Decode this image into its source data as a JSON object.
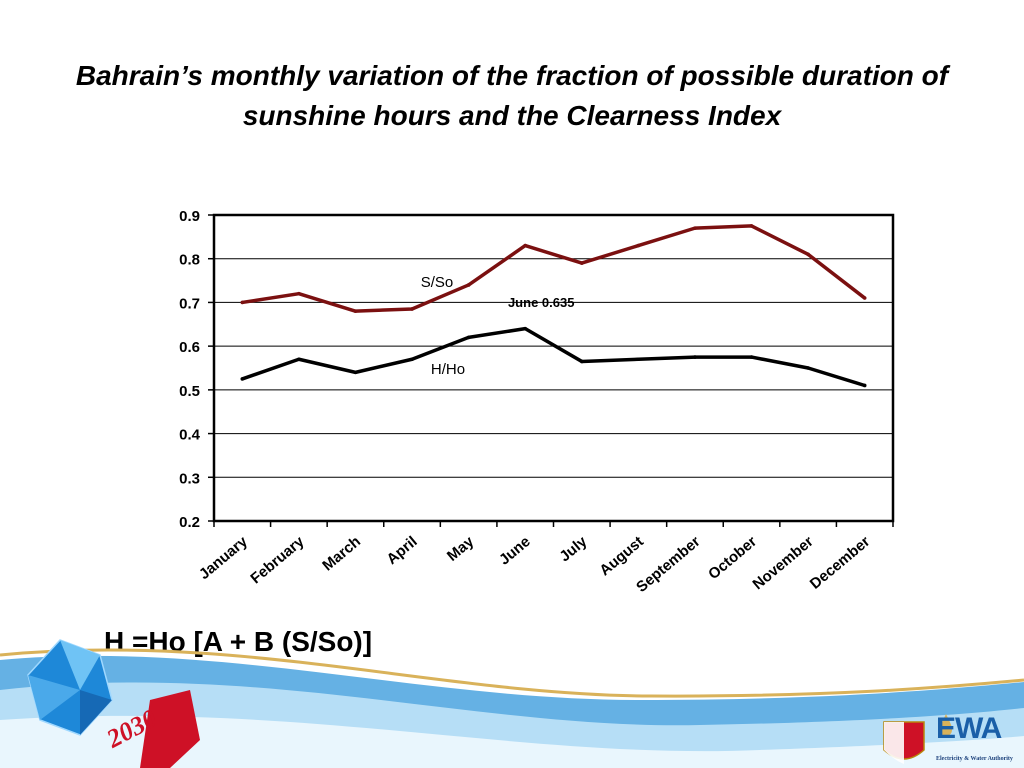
{
  "slide": {
    "title": "Bahrain’s monthly variation of the fraction of possible duration of sunshine hours and the Clearness Index",
    "formula": "H =Ho [A + B (S/So)]",
    "footer": {
      "vision_text": "2030",
      "logo_text": "EWA",
      "logo_subtitle": "Electricity & Water Authority",
      "colors": {
        "swoosh_blue": "#4aa3df",
        "swoosh_gold": "#d9b25a",
        "flag_red": "#ce1126"
      }
    }
  },
  "chart_data": {
    "type": "line",
    "categories": [
      "January",
      "February",
      "March",
      "April",
      "May",
      "June",
      "July",
      "August",
      "September",
      "October",
      "November",
      "December"
    ],
    "series": [
      {
        "name": "S/So",
        "color": "#7b1010",
        "values": [
          0.7,
          0.72,
          0.68,
          0.685,
          0.74,
          0.83,
          0.79,
          0.83,
          0.87,
          0.875,
          0.81,
          0.71
        ]
      },
      {
        "name": "H/Ho",
        "color": "#000000",
        "values": [
          0.525,
          0.57,
          0.54,
          0.57,
          0.62,
          0.64,
          0.565,
          0.57,
          0.575,
          0.575,
          0.55,
          0.51
        ]
      }
    ],
    "annotations": [
      {
        "text": "June 0.635",
        "category": "June",
        "value": 0.635
      }
    ],
    "ylim": [
      0.2,
      0.9
    ],
    "yticks": [
      "0.2",
      "0.3",
      "0.4",
      "0.5",
      "0.6",
      "0.7",
      "0.8",
      "0.9"
    ],
    "grid": true,
    "xlabel": "",
    "ylabel": ""
  }
}
